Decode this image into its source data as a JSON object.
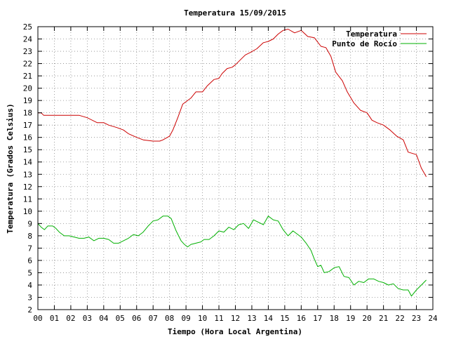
{
  "chart_data": {
    "type": "line",
    "title": "Temperatura 15/09/2015",
    "xlabel": "Tiempo (Hora Local Argentina)",
    "ylabel": "Temperatura (Grados Celsius)",
    "xlim": [
      0,
      24
    ],
    "ylim": [
      2,
      25
    ],
    "x_ticks": [
      "00",
      "01",
      "02",
      "03",
      "04",
      "05",
      "06",
      "07",
      "08",
      "09",
      "10",
      "11",
      "12",
      "13",
      "14",
      "15",
      "16",
      "17",
      "18",
      "19",
      "20",
      "21",
      "22",
      "23",
      "24"
    ],
    "y_ticks": [
      "2",
      "3",
      "4",
      "5",
      "6",
      "7",
      "8",
      "9",
      "10",
      "11",
      "12",
      "13",
      "14",
      "15",
      "16",
      "17",
      "18",
      "19",
      "20",
      "21",
      "22",
      "23",
      "24",
      "25"
    ],
    "grid": true,
    "legend_position": "top-right",
    "series": [
      {
        "name": "Temperatura",
        "color": "#cc0000",
        "x": [
          0,
          0.2,
          0.35,
          1,
          2,
          2.5,
          3,
          3.6,
          4,
          4.3,
          4.8,
          5.2,
          5.5,
          6,
          6.4,
          7,
          7.4,
          7.6,
          8,
          8.2,
          8.5,
          8.8,
          9.0,
          9.3,
          9.6,
          10.0,
          10.3,
          10.7,
          11.0,
          11.2,
          11.5,
          11.8,
          12.0,
          12.3,
          12.6,
          12.9,
          13.3,
          13.7,
          14.0,
          14.3,
          14.6,
          14.9,
          15.2,
          15.6,
          16.0,
          16.4,
          16.8,
          17.2,
          17.5,
          17.8,
          18.1,
          18.5,
          18.8,
          19.2,
          19.6,
          20.0,
          20.3,
          20.6,
          21.0,
          21.4,
          21.8,
          22.2,
          22.5,
          23.0,
          23.3,
          23.6
        ],
        "y": [
          18.0,
          18.0,
          17.8,
          17.8,
          17.8,
          17.8,
          17.6,
          17.2,
          17.2,
          17.0,
          16.8,
          16.6,
          16.3,
          16.0,
          15.8,
          15.7,
          15.7,
          15.8,
          16.1,
          16.6,
          17.6,
          18.7,
          18.9,
          19.2,
          19.7,
          19.7,
          20.2,
          20.7,
          20.8,
          21.2,
          21.6,
          21.7,
          21.9,
          22.3,
          22.7,
          22.9,
          23.2,
          23.7,
          23.8,
          24.0,
          24.4,
          24.7,
          24.8,
          24.5,
          24.7,
          24.2,
          24.1,
          23.4,
          23.3,
          22.6,
          21.3,
          20.6,
          19.7,
          18.8,
          18.2,
          18.0,
          17.4,
          17.2,
          17.0,
          16.6,
          16.1,
          15.8,
          14.8,
          14.6,
          13.5,
          12.8
        ]
      },
      {
        "name": "Punto de Rocío",
        "color": "#00b000",
        "x": [
          0,
          0.2,
          0.4,
          0.6,
          0.9,
          1.1,
          1.3,
          1.6,
          1.9,
          2.2,
          2.5,
          2.8,
          3.1,
          3.4,
          3.7,
          4.0,
          4.3,
          4.6,
          4.9,
          5.2,
          5.5,
          5.8,
          6.1,
          6.4,
          6.7,
          7.0,
          7.3,
          7.6,
          7.9,
          8.1,
          8.4,
          8.7,
          8.9,
          9.1,
          9.3,
          9.6,
          9.9,
          10.1,
          10.4,
          10.7,
          11.0,
          11.3,
          11.6,
          11.9,
          12.2,
          12.5,
          12.8,
          13.1,
          13.4,
          13.7,
          14.0,
          14.3,
          14.6,
          14.9,
          15.2,
          15.5,
          15.8,
          16.0,
          16.3,
          16.6,
          16.8,
          17.0,
          17.2,
          17.4,
          17.7,
          18.0,
          18.3,
          18.6,
          18.9,
          19.2,
          19.5,
          19.8,
          20.1,
          20.4,
          20.7,
          21.0,
          21.3,
          21.6,
          21.9,
          22.2,
          22.5,
          22.7,
          23.0,
          23.3,
          23.6
        ],
        "y": [
          9.0,
          8.7,
          8.5,
          8.8,
          8.8,
          8.6,
          8.3,
          8.0,
          8.0,
          7.9,
          7.8,
          7.8,
          7.9,
          7.6,
          7.8,
          7.8,
          7.7,
          7.4,
          7.4,
          7.6,
          7.8,
          8.1,
          8.0,
          8.3,
          8.8,
          9.2,
          9.3,
          9.6,
          9.6,
          9.4,
          8.4,
          7.6,
          7.3,
          7.1,
          7.3,
          7.4,
          7.5,
          7.7,
          7.7,
          8.0,
          8.4,
          8.3,
          8.7,
          8.5,
          8.9,
          9.0,
          8.6,
          9.3,
          9.1,
          8.9,
          9.6,
          9.3,
          9.2,
          8.5,
          8.0,
          8.4,
          8.1,
          7.9,
          7.4,
          6.8,
          6.1,
          5.5,
          5.6,
          5.0,
          5.1,
          5.4,
          5.5,
          4.7,
          4.6,
          4.0,
          4.3,
          4.2,
          4.5,
          4.5,
          4.3,
          4.2,
          4.0,
          4.1,
          3.7,
          3.6,
          3.6,
          3.1,
          3.6,
          4.0,
          4.4
        ]
      }
    ]
  }
}
